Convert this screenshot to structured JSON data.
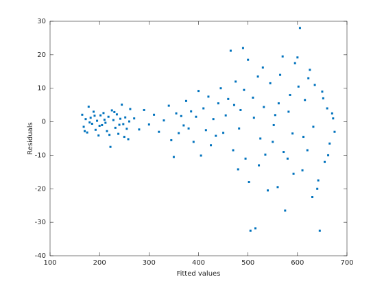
{
  "chart_data": {
    "type": "scatter",
    "xlabel": "Fitted values",
    "ylabel": "Residuals",
    "color": "#0072bd",
    "xlim": [
      100,
      700
    ],
    "xticks": [
      100,
      200,
      300,
      400,
      500,
      600,
      700
    ],
    "ylim": [
      -40,
      30
    ],
    "yticks": [
      -40,
      -30,
      -20,
      -10,
      0,
      10,
      20,
      30
    ],
    "x": [
      165,
      168,
      172,
      175,
      178,
      182,
      185,
      188,
      192,
      195,
      198,
      202,
      205,
      208,
      212,
      215,
      218,
      222,
      225,
      228,
      232,
      235,
      238,
      242,
      245,
      248,
      252,
      255,
      258,
      262,
      170,
      180,
      190,
      200,
      210,
      220,
      230,
      240,
      250,
      260,
      270,
      280,
      290,
      300,
      310,
      320,
      330,
      340,
      345,
      350,
      355,
      360,
      365,
      370,
      375,
      380,
      385,
      390,
      395,
      400,
      405,
      410,
      415,
      420,
      425,
      430,
      435,
      440,
      445,
      450,
      455,
      460,
      465,
      470,
      475,
      480,
      485,
      490,
      495,
      500,
      505,
      510,
      515,
      520,
      525,
      530,
      535,
      540,
      472,
      482,
      492,
      502,
      512,
      522,
      532,
      545,
      550,
      555,
      560,
      565,
      570,
      575,
      580,
      585,
      590,
      595,
      600,
      605,
      610,
      615,
      620,
      625,
      630,
      635,
      640,
      645,
      650,
      655,
      660,
      665,
      670,
      675,
      552,
      562,
      572,
      582,
      592,
      602,
      612,
      622,
      632,
      642,
      652,
      662,
      672
    ],
    "y": [
      2.1,
      -1.5,
      0.8,
      -3.2,
      4.5,
      1.2,
      -0.6,
      3.0,
      -2.4,
      0.3,
      -4.1,
      1.9,
      -1.0,
      2.6,
      -0.3,
      -2.8,
      1.5,
      -7.5,
      3.4,
      0.5,
      -1.8,
      2.2,
      -3.6,
      0.9,
      5.1,
      -0.7,
      1.3,
      -2.1,
      -5.2,
      3.8,
      -2.8,
      -0.2,
      1.8,
      -1.2,
      0.6,
      -3.9,
      2.9,
      -0.9,
      -4.5,
      0.1,
      1.0,
      -2.3,
      3.5,
      -0.8,
      2.1,
      -3.0,
      0.4,
      4.8,
      -5.5,
      -10.5,
      2.5,
      -3.4,
      1.7,
      -1.1,
      6.2,
      -2.0,
      3.1,
      -6.0,
      1.5,
      9.2,
      -10.1,
      4.0,
      -2.5,
      7.5,
      -7.0,
      0.8,
      -4.2,
      5.5,
      10.0,
      -3.3,
      1.9,
      6.8,
      21.2,
      -8.5,
      12.0,
      -14.2,
      3.5,
      22.0,
      -11.0,
      18.5,
      -32.5,
      7.2,
      -31.8,
      13.5,
      -5.0,
      16.2,
      -9.8,
      -20.5,
      5.0,
      -2.0,
      9.5,
      -18.0,
      1.2,
      -13.0,
      4.4,
      11.5,
      -6.0,
      2.0,
      -19.5,
      14.0,
      19.5,
      -26.5,
      -11.0,
      8.0,
      -3.5,
      17.5,
      19.2,
      28.0,
      -14.5,
      6.5,
      -8.5,
      15.5,
      -22.5,
      11.0,
      -20.0,
      -32.5,
      9.0,
      -12.0,
      4.0,
      -6.5,
      2.5,
      -3.0,
      -1.0,
      5.5,
      -9.0,
      3.0,
      -15.5,
      10.5,
      -4.5,
      13.0,
      -1.5,
      -17.5,
      7.0,
      -10.0,
      1.0
    ]
  }
}
